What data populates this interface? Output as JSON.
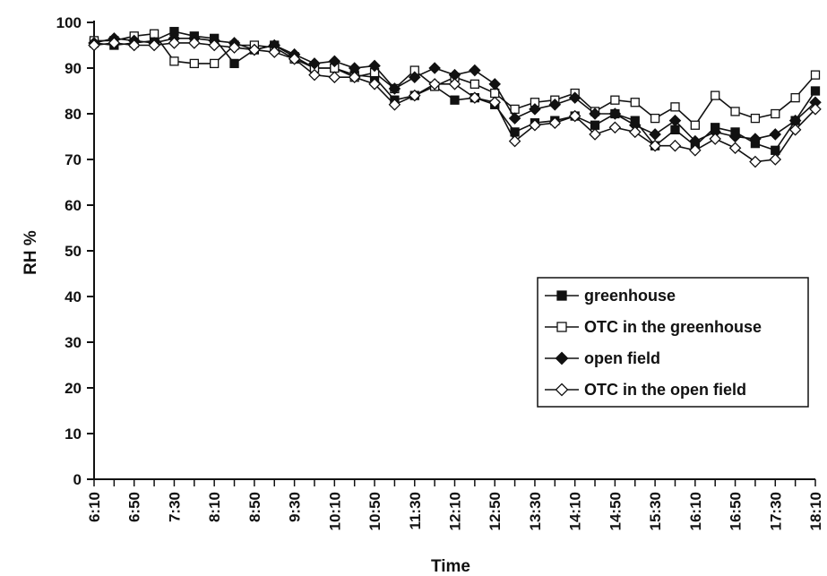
{
  "chart_data": {
    "type": "line",
    "xlabel": "Time",
    "ylabel": "RH %",
    "ylim": [
      0,
      100
    ],
    "yticks": [
      0,
      10,
      20,
      30,
      40,
      50,
      60,
      70,
      80,
      90,
      100
    ],
    "x": [
      "6:10",
      "6:30",
      "6:50",
      "7:10",
      "7:30",
      "7:50",
      "8:10",
      "8:30",
      "8:50",
      "9:10",
      "9:30",
      "9:50",
      "10:10",
      "10:30",
      "10:50",
      "11:10",
      "11:30",
      "11:50",
      "12:10",
      "12:30",
      "12:50",
      "13:10",
      "13:30",
      "13:50",
      "14:10",
      "14:30",
      "14:50",
      "15:10",
      "15:30",
      "15:50",
      "16:10",
      "16:30",
      "16:50",
      "17:10",
      "17:30",
      "17:50",
      "18:10"
    ],
    "xtick_labels": [
      "6:10",
      "6:50",
      "7:30",
      "8:10",
      "8:50",
      "9:30",
      "10:10",
      "10:50",
      "11:30",
      "12:10",
      "12:50",
      "13:30",
      "14:10",
      "14:50",
      "15:30",
      "16:10",
      "16:50",
      "17:30",
      "18:10"
    ],
    "legend_position": "right",
    "grid": false,
    "series": [
      {
        "name": "greenhouse",
        "marker": "filled-square",
        "values": [
          95.5,
          95,
          95.5,
          96,
          98,
          97,
          96.5,
          91,
          94,
          95,
          92.5,
          90,
          90,
          88.5,
          88,
          83,
          84,
          86,
          83,
          83.5,
          82,
          76,
          78,
          78.5,
          79.5,
          77.5,
          80,
          78.5,
          73,
          76.5,
          73,
          77,
          76,
          73.5,
          72,
          78.5,
          85
        ]
      },
      {
        "name": "OTC in the greenhouse",
        "marker": "open-square",
        "values": [
          96,
          96,
          97,
          97.5,
          91.5,
          91,
          91,
          95,
          95,
          94.5,
          92,
          90,
          90,
          88,
          89,
          85.5,
          89.5,
          86,
          88,
          86.5,
          84.5,
          81,
          82.5,
          83,
          84.5,
          80.5,
          83,
          82.5,
          79,
          81.5,
          77.5,
          84,
          80.5,
          79,
          80,
          83.5,
          88.5
        ]
      },
      {
        "name": "open field",
        "marker": "filled-diamond",
        "values": [
          95.5,
          96.5,
          96,
          95.5,
          96.5,
          96.5,
          96,
          95.5,
          94,
          95,
          93,
          91,
          91.5,
          90,
          90.5,
          85.5,
          88,
          90,
          88.5,
          89.5,
          86.5,
          79,
          81,
          82,
          83.5,
          80,
          80,
          77.5,
          75.5,
          78.5,
          74,
          76,
          75,
          74.5,
          75.5,
          78.5,
          82.5
        ]
      },
      {
        "name": "OTC in the open field",
        "marker": "open-diamond",
        "values": [
          95,
          95.5,
          95,
          95,
          95.5,
          95.5,
          95,
          94.5,
          94,
          93.5,
          92,
          88.5,
          88,
          88,
          86.5,
          82,
          84,
          86.5,
          86.5,
          83.5,
          82.5,
          74,
          77.5,
          78,
          79.5,
          75.5,
          77,
          76,
          73,
          73,
          72,
          74.5,
          72.5,
          69.5,
          70,
          76.5,
          81
        ]
      }
    ]
  }
}
